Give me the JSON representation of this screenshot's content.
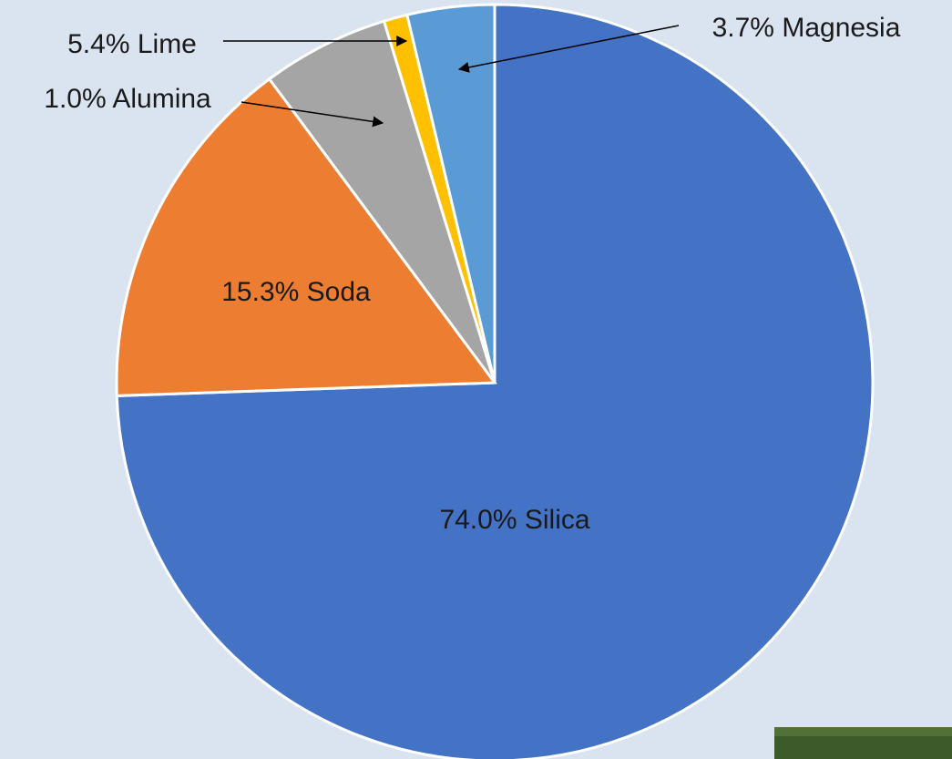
{
  "chart_data": {
    "type": "pie",
    "categories": [
      "Silica",
      "Soda",
      "Lime",
      "Alumina",
      "Magnesia"
    ],
    "values": [
      74.0,
      15.3,
      5.4,
      1.0,
      3.7
    ],
    "value_labels": [
      "74.0%",
      "15.3%",
      "5.4%",
      "1.0%",
      "3.7%"
    ],
    "colors": [
      "#4472c4",
      "#ed7d31",
      "#a5a5a5",
      "#ffc000",
      "#5b9bd5"
    ],
    "start_angle": "top",
    "direction": "clockwise"
  }
}
